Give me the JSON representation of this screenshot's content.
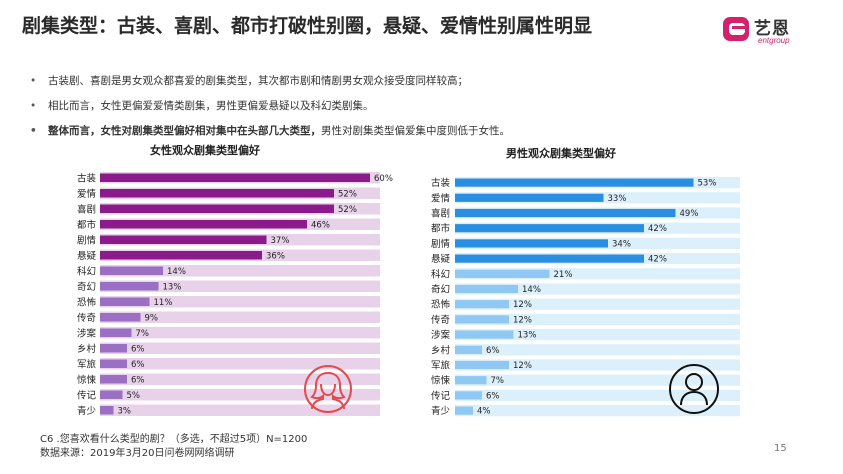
{
  "slide": {
    "title": "剧集类型：古装、喜剧、都市打破性别圈，悬疑、爱情性别属性明显",
    "bullets": [
      {
        "text": "古装剧、喜剧是男女观众都喜爱的剧集类型，其次都市剧和情剧男女观众接受度同样较高；",
        "rest": ""
      },
      {
        "text": "相比而言，女性更偏爱爱情类剧集，男性更偏爱悬疑以及科幻类剧集。",
        "rest": ""
      },
      {
        "text": "整体而言，女性对剧集类型偏好相对集中在头部几大类型，",
        "rest": "男性对剧集类型偏爱集中度则低于女性。"
      }
    ],
    "footnote_line1": "C6 .您喜欢看什么类型的剧？（多选，不超过5项）N=1200",
    "footnote_line2": "数据来源：2019年3月20日问卷网网络调研",
    "page_number": "15"
  },
  "logo": {
    "text_cn": "艺恩",
    "text_en": "entgroup",
    "brand_color": "#d4216b"
  },
  "icons": {
    "female": "female-person-icon",
    "male": "male-person-icon"
  },
  "chart_data": [
    {
      "type": "bar",
      "orientation": "horizontal",
      "title": "女性观众剧集类型偏好",
      "categories": [
        "古装",
        "爱情",
        "喜剧",
        "都市",
        "剧情",
        "悬疑",
        "科幻",
        "奇幻",
        "恐怖",
        "传奇",
        "涉案",
        "乡村",
        "军旅",
        "惊悚",
        "传记",
        "青少"
      ],
      "values": [
        60,
        52,
        52,
        46,
        37,
        36,
        14,
        13,
        11,
        9,
        7,
        6,
        6,
        6,
        5,
        3
      ],
      "value_suffix": "%",
      "xlim": [
        0,
        100
      ],
      "colors": {
        "top": "#8b1a8b",
        "rest": "#9b6fc4",
        "track": "#e7d2ea"
      }
    },
    {
      "type": "bar",
      "orientation": "horizontal",
      "title": "男性观众剧集类型偏好",
      "categories": [
        "古装",
        "爱情",
        "喜剧",
        "都市",
        "剧情",
        "悬疑",
        "科幻",
        "奇幻",
        "恐怖",
        "传奇",
        "涉案",
        "乡村",
        "军旅",
        "惊悚",
        "传记",
        "青少"
      ],
      "values": [
        53,
        33,
        49,
        42,
        34,
        42,
        21,
        14,
        12,
        12,
        13,
        6,
        12,
        7,
        6,
        4
      ],
      "value_suffix": "%",
      "xlim": [
        0,
        100
      ],
      "colors": {
        "top": "#2a8fe0",
        "rest": "#8fc8f2",
        "track": "#dcf0fb"
      }
    }
  ]
}
